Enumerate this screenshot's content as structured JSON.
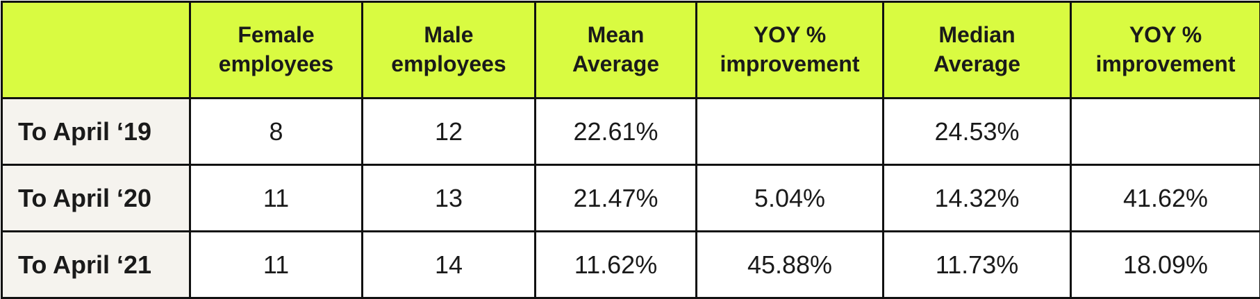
{
  "table": {
    "header": [
      "Female\nemployees",
      "Male\nemployees",
      "Mean\nAverage",
      "YOY %\nimprovement",
      "Median\nAverage",
      "YOY %\nimprovement"
    ],
    "rows": [
      {
        "label": "To April ‘19",
        "cells": [
          "8",
          "12",
          "22.61%",
          null,
          "24.53%",
          null
        ]
      },
      {
        "label": "To April ‘20",
        "cells": [
          "11",
          "13",
          "21.47%",
          "5.04%",
          "14.32%",
          "41.62%"
        ]
      },
      {
        "label": "To April ‘21",
        "cells": [
          "11",
          "14",
          "11.62%",
          "45.88%",
          "11.73%",
          "18.09%"
        ]
      }
    ]
  }
}
